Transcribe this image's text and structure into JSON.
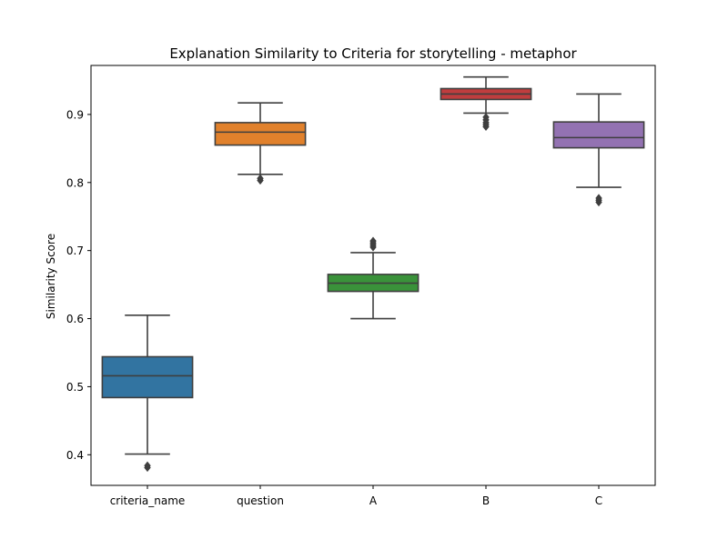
{
  "chart_data": {
    "type": "box",
    "title": "Explanation Similarity to Criteria for storytelling - metaphor",
    "xlabel": "",
    "ylabel": "Similarity Score",
    "ylim": [
      0.355,
      0.972
    ],
    "yticks": [
      0.4,
      0.5,
      0.6,
      0.7,
      0.8,
      0.9
    ],
    "grid": false,
    "categories": [
      "criteria_name",
      "question",
      "A",
      "B",
      "C"
    ],
    "colors": [
      "#3274a1",
      "#e1812c",
      "#3a923a",
      "#c03d3e",
      "#9372b2"
    ],
    "boxes": [
      {
        "category": "criteria_name",
        "whisker_low": 0.401,
        "q1": 0.484,
        "median": 0.516,
        "q3": 0.544,
        "whisker_high": 0.605,
        "outliers": [
          0.381,
          0.384
        ]
      },
      {
        "category": "question",
        "whisker_low": 0.812,
        "q1": 0.855,
        "median": 0.874,
        "q3": 0.888,
        "whisker_high": 0.917,
        "outliers": [
          0.803,
          0.806
        ]
      },
      {
        "category": "A",
        "whisker_low": 0.6,
        "q1": 0.64,
        "median": 0.652,
        "q3": 0.665,
        "whisker_high": 0.697,
        "outliers": [
          0.705,
          0.708,
          0.711,
          0.714
        ]
      },
      {
        "category": "B",
        "whisker_low": 0.902,
        "q1": 0.922,
        "median": 0.93,
        "q3": 0.938,
        "whisker_high": 0.955,
        "outliers": [
          0.882,
          0.885,
          0.888,
          0.892,
          0.896
        ]
      },
      {
        "category": "C",
        "whisker_low": 0.793,
        "q1": 0.851,
        "median": 0.866,
        "q3": 0.889,
        "whisker_high": 0.93,
        "outliers": [
          0.771,
          0.774,
          0.777
        ]
      }
    ]
  }
}
